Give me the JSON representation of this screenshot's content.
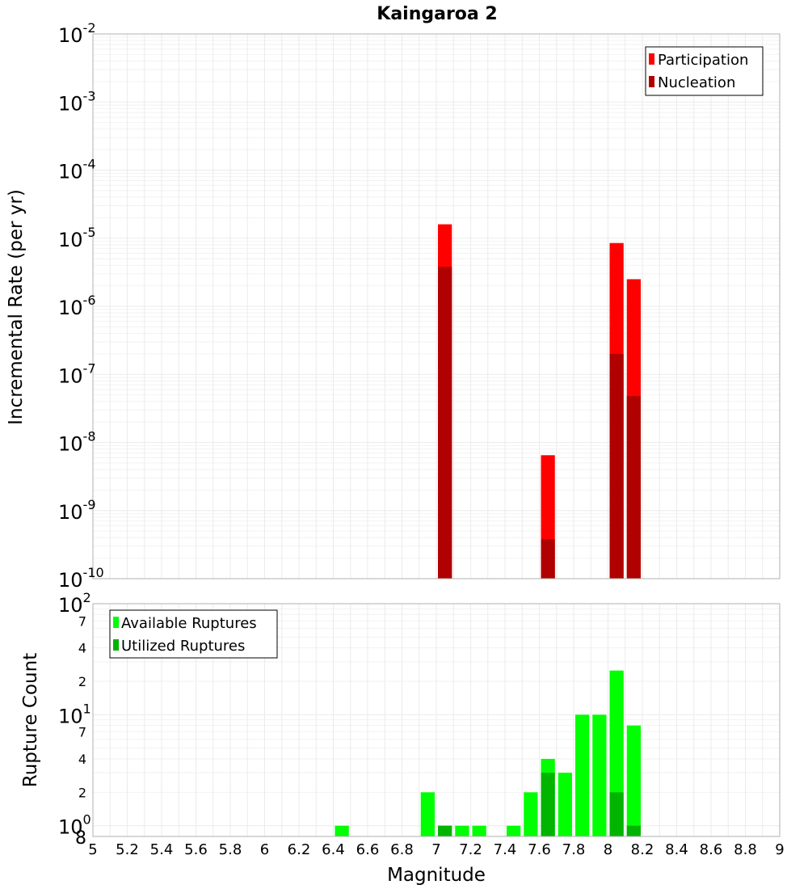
{
  "colors": {
    "participation": "#ff0000",
    "nucleation": "#b00000",
    "available": "#00ff00",
    "utilized": "#00b400"
  },
  "chart_data": [
    {
      "type": "bar",
      "title": "Kaingaroa 2",
      "ylabel": "Incremental Rate (per yr)",
      "yscale": "log",
      "ylim": [
        1e-10,
        0.01
      ],
      "xlim": [
        5,
        9
      ],
      "y_ticks": [
        {
          "base": "10",
          "exp": "-10"
        },
        {
          "base": "10",
          "exp": "-9"
        },
        {
          "base": "10",
          "exp": "-8"
        },
        {
          "base": "10",
          "exp": "-7"
        },
        {
          "base": "10",
          "exp": "-6"
        },
        {
          "base": "10",
          "exp": "-5"
        },
        {
          "base": "10",
          "exp": "-4"
        },
        {
          "base": "10",
          "exp": "-3"
        },
        {
          "base": "10",
          "exp": "-2"
        }
      ],
      "legend_position": "top-right",
      "series": [
        {
          "name": "Participation",
          "color": "#ff0000",
          "points": [
            {
              "x": 7.05,
              "y": 1.6e-05
            },
            {
              "x": 7.65,
              "y": 6.5e-09
            },
            {
              "x": 8.05,
              "y": 8.5e-06
            },
            {
              "x": 8.15,
              "y": 2.5e-06
            }
          ]
        },
        {
          "name": "Nucleation",
          "color": "#b00000",
          "points": [
            {
              "x": 7.05,
              "y": 3.8e-06
            },
            {
              "x": 7.65,
              "y": 3.8e-10
            },
            {
              "x": 8.05,
              "y": 2e-07
            },
            {
              "x": 8.15,
              "y": 4.8e-08
            }
          ]
        }
      ]
    },
    {
      "type": "bar",
      "ylabel": "Rupture Count",
      "xlabel": "Magnitude",
      "yscale": "log",
      "ylim": [
        0.8,
        100
      ],
      "xlim": [
        5,
        9
      ],
      "x_ticks": [
        "5",
        "5.2",
        "5.4",
        "5.6",
        "5.8",
        "6",
        "6.2",
        "6.4",
        "6.6",
        "6.8",
        "7",
        "7.2",
        "7.4",
        "7.6",
        "7.8",
        "8",
        "8.2",
        "8.4",
        "8.6",
        "8.8",
        "9"
      ],
      "y_ticks": [
        {
          "value": 1,
          "base": "10",
          "exp": "0"
        },
        {
          "value": 2,
          "label": "2"
        },
        {
          "value": 4,
          "label": "4"
        },
        {
          "value": 7,
          "label": "7"
        },
        {
          "value": 10,
          "base": "10",
          "exp": "1"
        },
        {
          "value": 20,
          "label": "2"
        },
        {
          "value": 40,
          "label": "4"
        },
        {
          "value": 70,
          "label": "7"
        },
        {
          "value": 100,
          "base": "10",
          "exp": "2"
        }
      ],
      "axis_min_label": "8",
      "legend_position": "top-left",
      "series": [
        {
          "name": "Available Ruptures",
          "color": "#00ff00",
          "points": [
            {
              "x": 6.45,
              "y": 1
            },
            {
              "x": 6.95,
              "y": 2
            },
            {
              "x": 7.05,
              "y": 1
            },
            {
              "x": 7.15,
              "y": 1
            },
            {
              "x": 7.25,
              "y": 1
            },
            {
              "x": 7.45,
              "y": 1
            },
            {
              "x": 7.55,
              "y": 2
            },
            {
              "x": 7.65,
              "y": 4
            },
            {
              "x": 7.75,
              "y": 3
            },
            {
              "x": 7.85,
              "y": 10
            },
            {
              "x": 7.95,
              "y": 10
            },
            {
              "x": 8.05,
              "y": 25
            },
            {
              "x": 8.15,
              "y": 8
            }
          ]
        },
        {
          "name": "Utilized Ruptures",
          "color": "#00b400",
          "points": [
            {
              "x": 7.05,
              "y": 1
            },
            {
              "x": 7.65,
              "y": 3
            },
            {
              "x": 8.05,
              "y": 2
            },
            {
              "x": 8.15,
              "y": 1
            }
          ]
        }
      ]
    }
  ]
}
